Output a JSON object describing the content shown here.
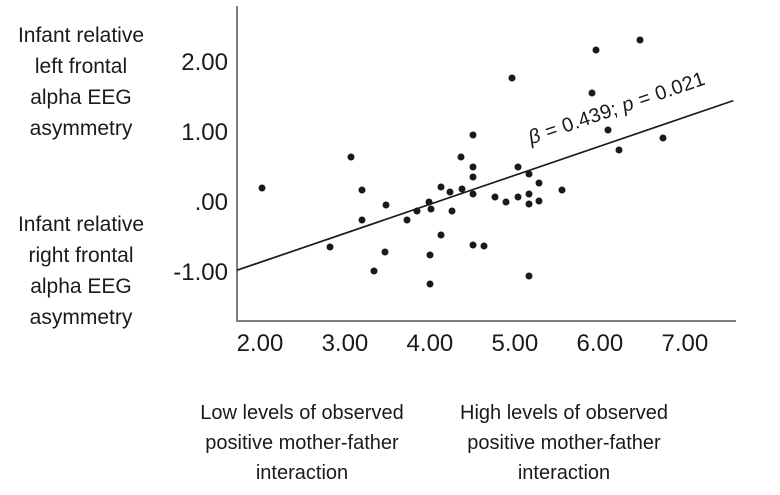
{
  "figure": {
    "y_axis_label_top": {
      "lines": [
        "Infant relative",
        "left frontal",
        "alpha EEG",
        "asymmetry"
      ]
    },
    "y_axis_label_bottom": {
      "lines": [
        "Infant relative",
        "right frontal",
        "alpha EEG",
        "asymmetry"
      ]
    },
    "x_axis_label_low": {
      "lines": [
        "Low levels of observed",
        "positive mother-father",
        "interaction"
      ]
    },
    "x_axis_label_high": {
      "lines": [
        "High levels of observed",
        "positive mother-father",
        "interaction"
      ]
    }
  },
  "chart_data": {
    "type": "scatter",
    "title": "",
    "xlabel": "Observed positive mother-father interaction",
    "ylabel": "Infant relative frontal alpha EEG asymmetry",
    "xlim": [
      1.73,
      7.59
    ],
    "ylim": [
      -1.67,
      2.81
    ],
    "grid": false,
    "x_ticks": {
      "values": [
        2,
        3,
        4,
        5,
        6,
        7
      ],
      "labels": [
        "2.00",
        "3.00",
        "4.00",
        "5.00",
        "6.00",
        "7.00"
      ]
    },
    "y_ticks": {
      "values": [
        2,
        1,
        0,
        -1
      ],
      "labels": [
        "2.00",
        "1.00",
        ".00",
        "-1.00"
      ]
    },
    "points": [
      [
        2.03,
        0.22
      ],
      [
        2.82,
        -0.63
      ],
      [
        3.07,
        0.66
      ],
      [
        3.2,
        0.18
      ],
      [
        3.2,
        -0.25
      ],
      [
        3.34,
        -0.97
      ],
      [
        3.47,
        -0.7
      ],
      [
        3.48,
        -0.03
      ],
      [
        3.73,
        -0.24
      ],
      [
        3.85,
        -0.11
      ],
      [
        3.99,
        0.01
      ],
      [
        4.01,
        -0.08
      ],
      [
        4.0,
        -0.74
      ],
      [
        4.0,
        -1.15
      ],
      [
        4.13,
        0.23
      ],
      [
        4.13,
        -0.46
      ],
      [
        4.24,
        0.15
      ],
      [
        4.26,
        -0.12
      ],
      [
        4.37,
        0.65
      ],
      [
        4.38,
        0.2
      ],
      [
        4.51,
        0.97
      ],
      [
        4.51,
        0.52
      ],
      [
        4.51,
        0.37
      ],
      [
        4.51,
        0.13
      ],
      [
        4.51,
        -0.6
      ],
      [
        4.64,
        -0.61
      ],
      [
        4.77,
        0.08
      ],
      [
        4.89,
        0.02
      ],
      [
        4.97,
        1.78
      ],
      [
        5.04,
        0.51
      ],
      [
        5.04,
        0.08
      ],
      [
        5.17,
        0.41
      ],
      [
        5.17,
        0.13
      ],
      [
        5.17,
        -0.02
      ],
      [
        5.17,
        -1.04
      ],
      [
        5.28,
        0.28
      ],
      [
        5.28,
        0.03
      ],
      [
        5.56,
        0.18
      ],
      [
        5.91,
        1.57
      ],
      [
        5.95,
        2.18
      ],
      [
        6.09,
        1.04
      ],
      [
        6.22,
        0.75
      ],
      [
        6.47,
        2.33
      ],
      [
        6.74,
        0.93
      ]
    ],
    "regression_line": {
      "x1": 1.73,
      "y1": -0.96,
      "x2": 7.57,
      "y2": 1.46
    },
    "annotation": {
      "full_text": "β = 0.439; p = 0.021",
      "parts": [
        {
          "text": "β",
          "italic": true
        },
        {
          "text": " = 0.439; ",
          "italic": false
        },
        {
          "text": "p",
          "italic": true
        },
        {
          "text": " = 0.021",
          "italic": false
        }
      ],
      "rotation_deg": -19
    },
    "colors": {
      "dot": "#1a1a1a",
      "regression_line": "#1a1a1a",
      "axis": "#7f7f7f",
      "text": "#1a1a1a"
    },
    "point_radius_px": 3.5
  }
}
